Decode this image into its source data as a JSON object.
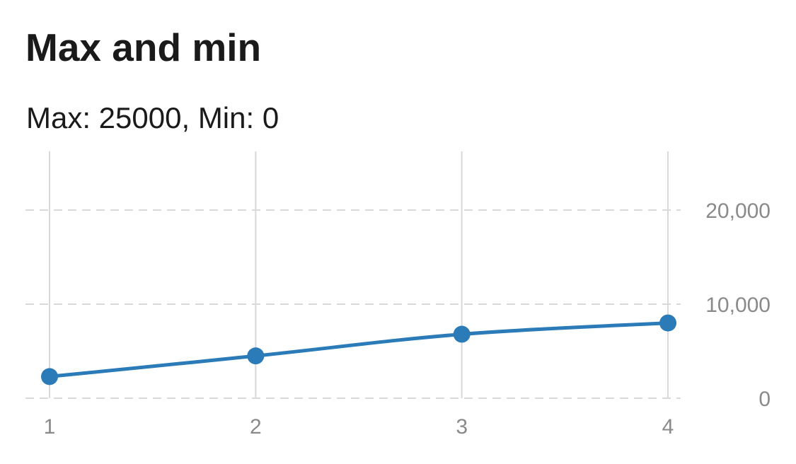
{
  "page": {
    "title": "Max and min",
    "subtitle": "Max: 25000, Min: 0"
  },
  "chart_data": {
    "type": "line",
    "x": [
      1,
      2,
      3,
      4
    ],
    "series": [
      {
        "values": [
          2300,
          4500,
          6800,
          8000
        ]
      }
    ],
    "xlim": [
      1,
      4
    ],
    "ylim": [
      0,
      25000
    ],
    "x_ticks": [
      1,
      2,
      3,
      4
    ],
    "x_tick_labels": [
      "1",
      "2",
      "3",
      "4"
    ],
    "y_ticks": [
      0,
      10000,
      20000
    ],
    "y_tick_labels": [
      "0",
      "10,000",
      "20,000"
    ],
    "y_axis_position": "right",
    "grid": true,
    "colors": {
      "series": "#2b7bb9",
      "grid": "#d9d9d9",
      "tick_text": "#8a8a8a"
    }
  }
}
